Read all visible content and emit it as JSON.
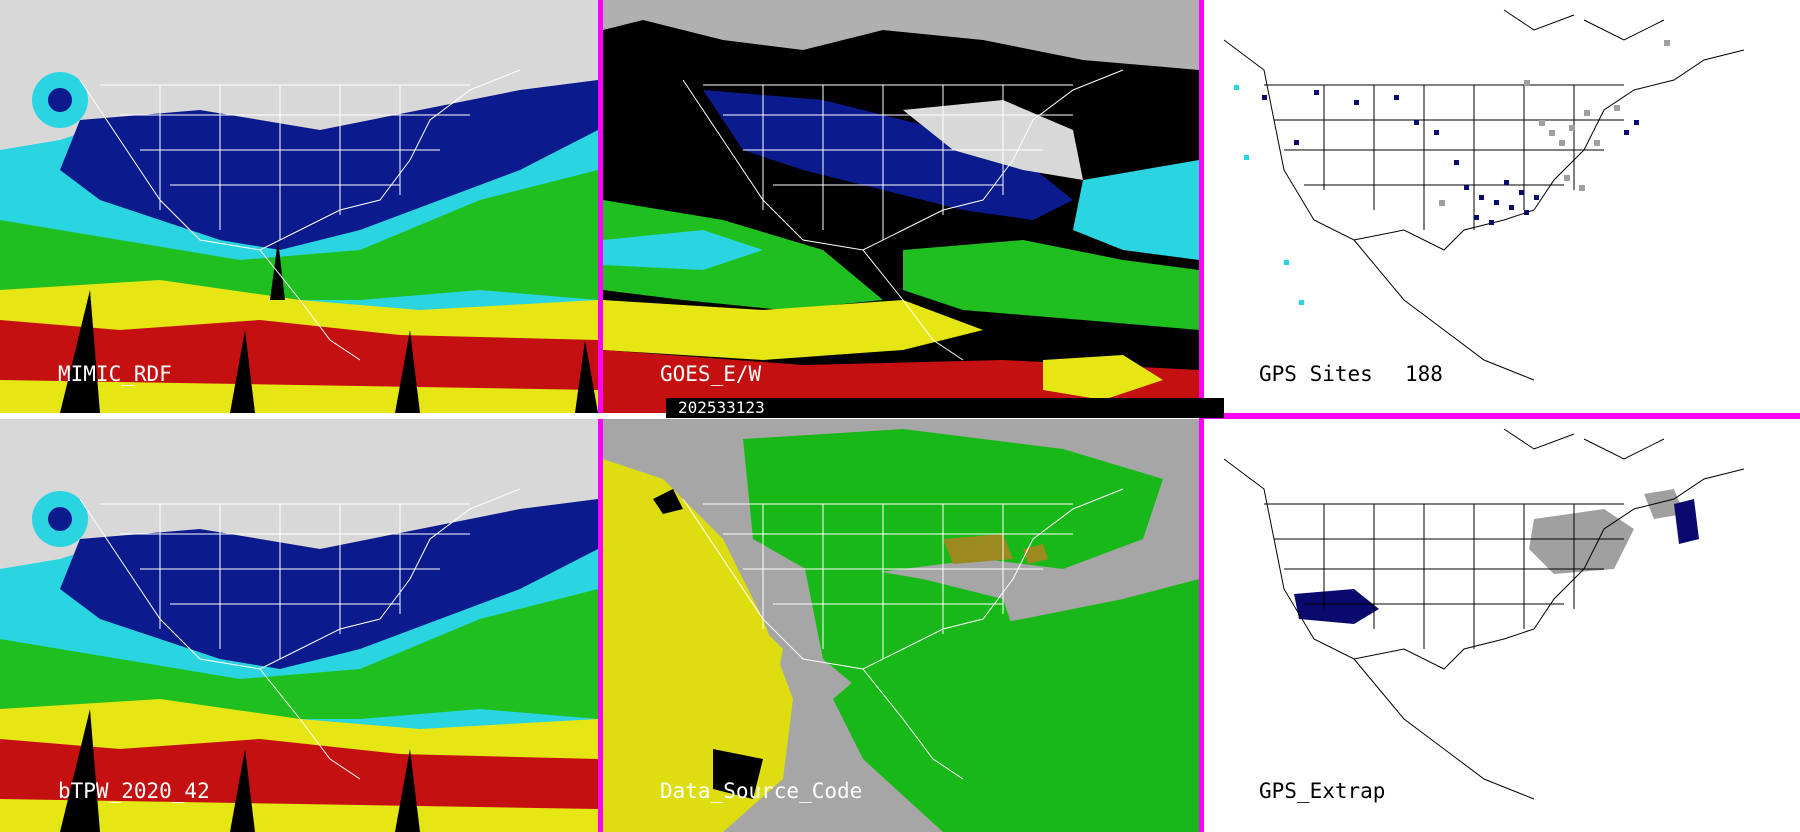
{
  "panels": [
    {
      "id": "p1",
      "label": "MIMIC_RDF"
    },
    {
      "id": "p2",
      "label": "GOES_E/W"
    },
    {
      "id": "p3",
      "label": "GPS Sites",
      "count": "188"
    },
    {
      "id": "p4",
      "label": "bTPW_2020_42"
    },
    {
      "id": "p5",
      "label": "Data_Source_Code"
    },
    {
      "id": "p6",
      "label": "GPS_Extrap"
    }
  ],
  "timestamp": "202533123",
  "colors": {
    "divider": "#ff00ff",
    "tpw_dry": "#e0e0e0",
    "tpw_blue": "#0b1a8c",
    "tpw_cyan": "#2ad4e0",
    "tpw_green": "#1fbf1f",
    "tpw_yellow": "#e6e614",
    "tpw_red": "#c41010",
    "dsc_gray": "#a6a6a6",
    "dsc_green": "#19b819",
    "dsc_yellow": "#dddd10",
    "dsc_olive": "#9a8a20",
    "gps_navy": "#0a0a6e",
    "gps_gray": "#a0a0a0"
  }
}
